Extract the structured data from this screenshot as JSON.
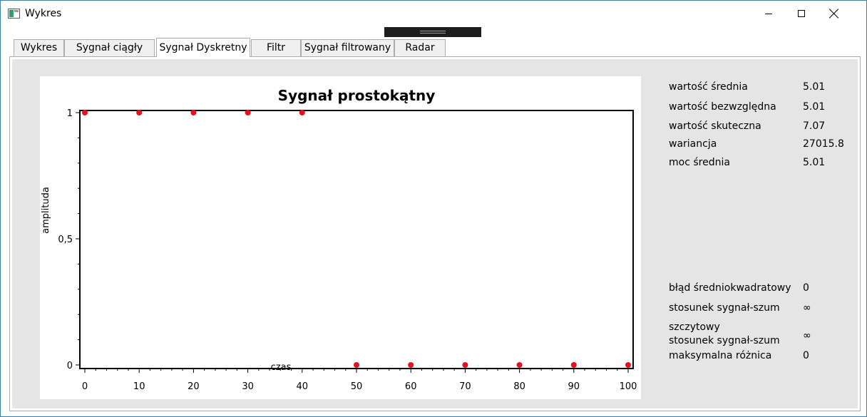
{
  "window": {
    "title": "Wykres",
    "icon": "window-app-icon",
    "controls": [
      "minimize-icon",
      "maximize-icon",
      "close-icon"
    ]
  },
  "tabs": [
    {
      "label": "Wykres",
      "active": false
    },
    {
      "label": "Sygnał ciągły",
      "active": false
    },
    {
      "label": "Sygnał Dyskretny",
      "active": true
    },
    {
      "label": "Filtr",
      "active": false
    },
    {
      "label": "Sygnał filtrowany",
      "active": false
    },
    {
      "label": "Radar",
      "active": false
    }
  ],
  "chart_data": {
    "type": "scatter",
    "title": "Sygnał prostokątny",
    "xlabel": "czas",
    "ylabel": "amplituda",
    "xlim": [
      0,
      100
    ],
    "ylim": [
      0,
      1
    ],
    "xticks": [
      "0",
      "10",
      "20",
      "30",
      "40",
      "50",
      "60",
      "70",
      "80",
      "90",
      "100"
    ],
    "yticks": [
      "0",
      "0,5",
      "1"
    ],
    "grid": false,
    "point_color": "#e8101e",
    "x": [
      0,
      10,
      20,
      30,
      40,
      50,
      60,
      70,
      80,
      90,
      100
    ],
    "y": [
      1,
      1,
      1,
      1,
      1,
      0,
      0,
      0,
      0,
      0,
      0
    ]
  },
  "stats": [
    {
      "label": "wartość średnia",
      "value": "5.01"
    },
    {
      "label": "wartość bezwzględna",
      "value": "5.01"
    },
    {
      "label": "wartość skuteczna",
      "value": "7.07"
    },
    {
      "label": "wariancja",
      "value": "27015.8"
    },
    {
      "label": "moc średnia",
      "value": "5.01"
    }
  ],
  "errors": [
    {
      "label": "błąd średniokwadratowy",
      "value": "0"
    },
    {
      "label": "stosunek sygnał-szum",
      "value": "∞"
    },
    {
      "label": "szczytowy\nstosunek sygnał-szum",
      "value": "∞"
    },
    {
      "label": "maksymalna różnica",
      "value": "0"
    }
  ]
}
